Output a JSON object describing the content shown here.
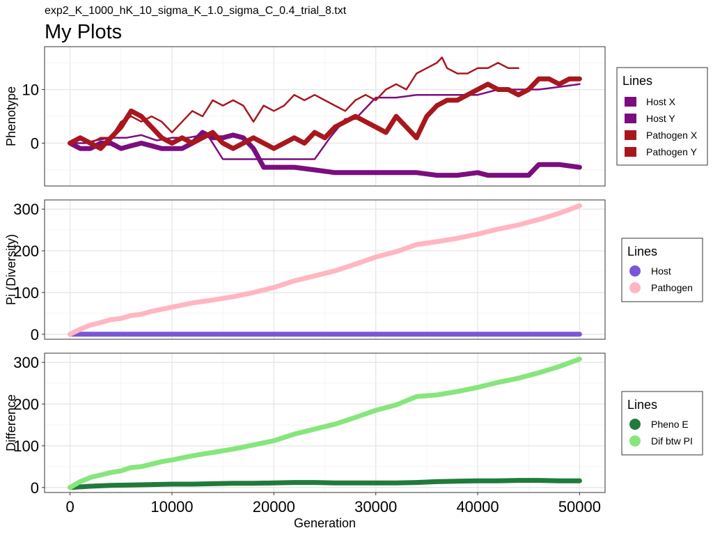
{
  "header": {
    "subtitle": "exp2_K_1000_hK_10_sigma_K_1.0_sigma_C_0.4_trial_8.txt",
    "title": "My Plots"
  },
  "chart_data": [
    {
      "type": "line",
      "ylabel": "Phenotype",
      "xlim": [
        -2500,
        52500
      ],
      "ylim": [
        -8,
        18
      ],
      "yticks": [
        0,
        10
      ],
      "grid": true,
      "legend": {
        "title": "Lines",
        "position": "right",
        "marker": "square"
      },
      "series": [
        {
          "name": "Host X",
          "color": "#7b0d7e",
          "thickness": "thin",
          "x": [
            0,
            1500,
            2500,
            4000,
            5500,
            7000,
            8500,
            10000,
            11500,
            13000,
            13500,
            15000,
            16500,
            18000,
            19500,
            21000,
            22500,
            24000,
            25500,
            27000,
            28000,
            30000,
            31000,
            32000,
            34000,
            36000,
            38000,
            40000,
            42000,
            44000,
            46000,
            48000,
            50000
          ],
          "values": [
            0,
            0,
            0.5,
            1,
            1,
            1.5,
            0.5,
            1,
            1,
            1.5,
            1.5,
            -3,
            -3,
            -3,
            -3,
            -3,
            -3,
            -3,
            1,
            4.5,
            4.5,
            8.5,
            8.5,
            8.5,
            9,
            9,
            9,
            9,
            10,
            10,
            10,
            10.5,
            11
          ]
        },
        {
          "name": "Host Y",
          "color": "#7b0d7e",
          "thickness": "thick",
          "x": [
            0,
            1000,
            2000,
            3000,
            4000,
            5000,
            6000,
            7000,
            8000,
            9000,
            10000,
            11000,
            12000,
            13000,
            14000,
            15000,
            16000,
            17000,
            18000,
            19000,
            20000,
            22000,
            24000,
            26000,
            28000,
            30000,
            32000,
            34000,
            36000,
            38000,
            40000,
            41000,
            42000,
            44000,
            45000,
            46000,
            48000,
            50000
          ],
          "values": [
            0,
            -1,
            -1,
            0,
            0,
            -1,
            -0.5,
            0,
            -0.5,
            -1,
            -1,
            -1,
            0,
            2,
            1,
            1,
            1.5,
            1,
            -1,
            -4.5,
            -4.5,
            -4.5,
            -5,
            -5.5,
            -5.5,
            -5.5,
            -5.5,
            -5.5,
            -6,
            -6,
            -5.5,
            -6,
            -6,
            -6,
            -6,
            -4,
            -4,
            -4.5
          ]
        },
        {
          "name": "Pathogen X",
          "color": "#a8171d",
          "thickness": "thin",
          "x": [
            0,
            1000,
            2000,
            3000,
            4000,
            5000,
            6000,
            7000,
            8000,
            9000,
            10000,
            11000,
            12000,
            13000,
            14000,
            15000,
            16000,
            17000,
            18000,
            19000,
            20000,
            21000,
            22000,
            23000,
            24000,
            25000,
            26000,
            27000,
            28000,
            29000,
            30000,
            31000,
            32000,
            33000,
            34000,
            35000,
            36000,
            36500,
            37000,
            38000,
            39000,
            40000,
            41000,
            42000,
            43000,
            44000
          ],
          "values": [
            0,
            1,
            0,
            1,
            1,
            4,
            5,
            4,
            5,
            4,
            2,
            4,
            6,
            5,
            8,
            7,
            8,
            7,
            4,
            7,
            6,
            7,
            9,
            8,
            9,
            8,
            7,
            6,
            8,
            9,
            8,
            10,
            11,
            10,
            13,
            14,
            15,
            16,
            14,
            13,
            13,
            14,
            14,
            15,
            14,
            14
          ]
        },
        {
          "name": "Pathogen Y",
          "color": "#a8171d",
          "thickness": "thick",
          "x": [
            0,
            1000,
            2000,
            3000,
            4000,
            5000,
            6000,
            7000,
            8000,
            9000,
            10000,
            11000,
            12000,
            13000,
            14000,
            15000,
            16000,
            17000,
            18000,
            19000,
            20000,
            21000,
            22000,
            23000,
            24000,
            25000,
            26000,
            27000,
            28000,
            29000,
            30000,
            31000,
            32000,
            33000,
            34000,
            35000,
            36000,
            37000,
            38000,
            39000,
            40000,
            41000,
            42000,
            43000,
            44000,
            45000,
            46000,
            47000,
            48000,
            49000,
            50000
          ],
          "values": [
            0,
            1,
            0,
            -1,
            1,
            3,
            6,
            5,
            3,
            1,
            0,
            1,
            0,
            1,
            2,
            0,
            -1,
            0,
            1,
            0,
            -1,
            0,
            1,
            0,
            2,
            1,
            3,
            4,
            5,
            4,
            3,
            2,
            5,
            3,
            1,
            5,
            7,
            8,
            8,
            9,
            10,
            11,
            10,
            10,
            9,
            10,
            12,
            12,
            11,
            12,
            12
          ]
        }
      ]
    },
    {
      "type": "line",
      "ylabel": "Pi (Diversity)",
      "xlim": [
        -2500,
        52500
      ],
      "ylim": [
        -12,
        322
      ],
      "yticks": [
        0,
        100,
        200,
        300
      ],
      "grid": true,
      "legend": {
        "title": "Lines",
        "position": "right",
        "marker": "circle"
      },
      "series": [
        {
          "name": "Host",
          "color": "#7b57d6",
          "thickness": "thick",
          "x": [
            0,
            10000,
            20000,
            30000,
            40000,
            50000
          ],
          "values": [
            0,
            0,
            0,
            0,
            0,
            0
          ]
        },
        {
          "name": "Pathogen",
          "color": "#ffb6c1",
          "thickness": "thick",
          "x": [
            0,
            1000,
            2000,
            3000,
            4000,
            5000,
            6000,
            7000,
            8000,
            9000,
            10000,
            12000,
            14000,
            16000,
            18000,
            20000,
            22000,
            24000,
            26000,
            28000,
            30000,
            32000,
            34000,
            36000,
            38000,
            40000,
            42000,
            44000,
            46000,
            48000,
            50000
          ],
          "values": [
            0,
            12,
            22,
            28,
            35,
            38,
            45,
            48,
            55,
            60,
            65,
            75,
            82,
            90,
            100,
            112,
            128,
            140,
            152,
            168,
            185,
            198,
            215,
            222,
            230,
            240,
            252,
            262,
            275,
            290,
            308
          ]
        }
      ]
    },
    {
      "type": "line",
      "ylabel": "Difference",
      "xlabel": "Generation",
      "xlim": [
        -2500,
        52500
      ],
      "ylim": [
        -12,
        322
      ],
      "yticks": [
        0,
        100,
        200,
        300
      ],
      "xticks": [
        0,
        10000,
        20000,
        30000,
        40000,
        50000
      ],
      "grid": true,
      "legend": {
        "title": "Lines",
        "position": "right",
        "marker": "circle"
      },
      "series": [
        {
          "name": "Pheno E",
          "color": "#217a3c",
          "thickness": "thick",
          "x": [
            0,
            2000,
            4000,
            6000,
            8000,
            10000,
            12000,
            14000,
            16000,
            18000,
            20000,
            22000,
            24000,
            26000,
            28000,
            30000,
            32000,
            34000,
            36000,
            38000,
            40000,
            42000,
            44000,
            46000,
            48000,
            50000
          ],
          "values": [
            0,
            3,
            5,
            6,
            7,
            8,
            8,
            9,
            10,
            10,
            11,
            12,
            12,
            11,
            11,
            11,
            11,
            12,
            14,
            15,
            16,
            16,
            17,
            17,
            16,
            16
          ]
        },
        {
          "name": "Dif btw PI",
          "color": "#86e67c",
          "thickness": "thick",
          "x": [
            0,
            1000,
            2000,
            3000,
            4000,
            5000,
            6000,
            7000,
            8000,
            9000,
            10000,
            12000,
            14000,
            16000,
            18000,
            20000,
            22000,
            24000,
            26000,
            28000,
            30000,
            32000,
            34000,
            36000,
            38000,
            40000,
            42000,
            44000,
            46000,
            48000,
            50000
          ],
          "values": [
            0,
            14,
            24,
            30,
            36,
            40,
            48,
            50,
            56,
            62,
            66,
            76,
            84,
            92,
            102,
            112,
            128,
            140,
            152,
            168,
            185,
            198,
            218,
            222,
            230,
            240,
            252,
            262,
            275,
            290,
            308
          ]
        }
      ]
    }
  ]
}
